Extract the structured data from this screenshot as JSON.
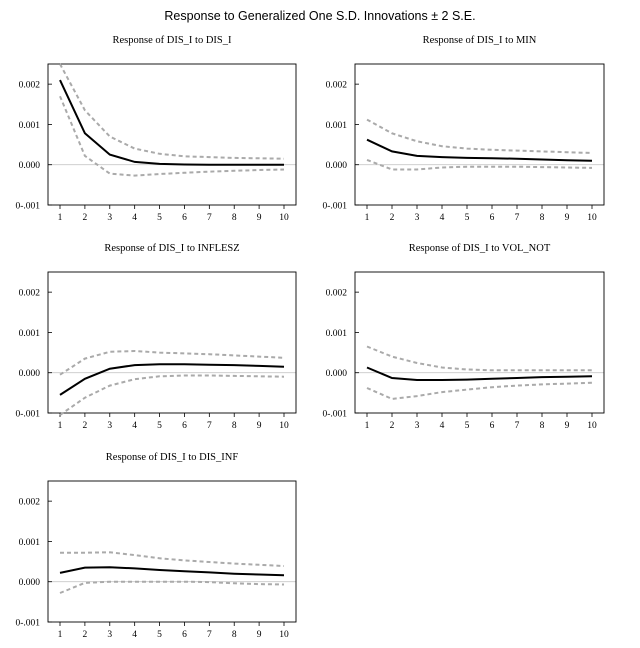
{
  "figure": {
    "title": "Response to Generalized One S.D. Innovations ± 2 S.E."
  },
  "style": {
    "response_color": "#000000",
    "band_color": "#aaaaaa",
    "zero_line_color": "#c8c8c8",
    "frame_color": "#000000"
  },
  "chart_data": [
    {
      "type": "line",
      "title": "Response of DIS_I to DIS_I",
      "x": [
        1,
        2,
        3,
        4,
        5,
        6,
        7,
        8,
        9,
        10
      ],
      "ylim": [
        -0.001,
        0.0025
      ],
      "ytick_values": [
        -0.001,
        0.0,
        0.001,
        0.002
      ],
      "ytick_labels": [
        "0-.001",
        "0.000",
        "0.001",
        "0.002"
      ],
      "xtick_labels": [
        "1",
        "2",
        "3",
        "4",
        "5",
        "6",
        "7",
        "8",
        "9",
        "10"
      ],
      "grid": false,
      "series": [
        {
          "role": "response",
          "values": [
            0.0021,
            0.00078,
            0.00025,
            7e-05,
            2e-05,
            5e-06,
            0.0,
            0.0,
            0.0,
            0.0
          ]
        },
        {
          "role": "upper",
          "values": [
            0.0025,
            0.00135,
            0.0007,
            0.0004,
            0.00027,
            0.00021,
            0.00019,
            0.00017,
            0.00016,
            0.00015
          ]
        },
        {
          "role": "lower",
          "values": [
            0.0017,
            0.00022,
            -0.00022,
            -0.00027,
            -0.00023,
            -0.0002,
            -0.00017,
            -0.00015,
            -0.00013,
            -0.00012
          ]
        }
      ]
    },
    {
      "type": "line",
      "title": "Response of DIS_I to MIN",
      "x": [
        1,
        2,
        3,
        4,
        5,
        6,
        7,
        8,
        9,
        10
      ],
      "ylim": [
        -0.001,
        0.0025
      ],
      "ytick_values": [
        -0.001,
        0.0,
        0.001,
        0.002
      ],
      "ytick_labels": [
        "0-.001",
        "0.000",
        "0.001",
        "0.002"
      ],
      "xtick_labels": [
        "1",
        "2",
        "3",
        "4",
        "5",
        "6",
        "7",
        "8",
        "9",
        "10"
      ],
      "grid": false,
      "series": [
        {
          "role": "response",
          "values": [
            0.00062,
            0.00033,
            0.00022,
            0.00019,
            0.00017,
            0.00016,
            0.00015,
            0.00013,
            0.00011,
            0.0001
          ]
        },
        {
          "role": "upper",
          "values": [
            0.00112,
            0.00078,
            0.00058,
            0.00046,
            0.0004,
            0.00037,
            0.00035,
            0.00033,
            0.00031,
            0.00029
          ]
        },
        {
          "role": "lower",
          "values": [
            0.00012,
            -0.00012,
            -0.00012,
            -7e-05,
            -5e-05,
            -5e-05,
            -5e-05,
            -6e-05,
            -7e-05,
            -8e-05
          ]
        }
      ]
    },
    {
      "type": "line",
      "title": "Response of DIS_I to INFLESZ",
      "x": [
        1,
        2,
        3,
        4,
        5,
        6,
        7,
        8,
        9,
        10
      ],
      "ylim": [
        -0.001,
        0.0025
      ],
      "ytick_values": [
        -0.001,
        0.0,
        0.001,
        0.002
      ],
      "ytick_labels": [
        "0-.001",
        "0.000",
        "0.001",
        "0.002"
      ],
      "xtick_labels": [
        "1",
        "2",
        "3",
        "4",
        "5",
        "6",
        "7",
        "8",
        "9",
        "10"
      ],
      "grid": false,
      "series": [
        {
          "role": "response",
          "values": [
            -0.00055,
            -0.00015,
            0.0001,
            0.00019,
            0.00021,
            0.00021,
            0.0002,
            0.00019,
            0.00017,
            0.00015
          ]
        },
        {
          "role": "upper",
          "values": [
            -5e-05,
            0.00035,
            0.00052,
            0.00054,
            0.0005,
            0.00048,
            0.00046,
            0.00043,
            0.0004,
            0.00037
          ]
        },
        {
          "role": "lower",
          "values": [
            -0.00105,
            -0.00062,
            -0.00032,
            -0.00016,
            -9e-05,
            -7e-05,
            -7e-05,
            -8e-05,
            -9e-05,
            -0.0001
          ]
        }
      ]
    },
    {
      "type": "line",
      "title": "Response of DIS_I to VOL_NOT",
      "x": [
        1,
        2,
        3,
        4,
        5,
        6,
        7,
        8,
        9,
        10
      ],
      "ylim": [
        -0.001,
        0.0025
      ],
      "ytick_values": [
        -0.001,
        0.0,
        0.001,
        0.002
      ],
      "ytick_labels": [
        "0-.001",
        "0.000",
        "0.001",
        "0.002"
      ],
      "xtick_labels": [
        "1",
        "2",
        "3",
        "4",
        "5",
        "6",
        "7",
        "8",
        "9",
        "10"
      ],
      "grid": false,
      "series": [
        {
          "role": "response",
          "values": [
            0.00013,
            -0.00013,
            -0.00018,
            -0.00018,
            -0.00017,
            -0.00015,
            -0.00013,
            -0.00011,
            -0.0001,
            -9e-05
          ]
        },
        {
          "role": "upper",
          "values": [
            0.00065,
            0.0004,
            0.00024,
            0.00013,
            8e-05,
            6e-05,
            6e-05,
            6e-05,
            6e-05,
            6e-05
          ]
        },
        {
          "role": "lower",
          "values": [
            -0.00038,
            -0.00065,
            -0.00058,
            -0.00048,
            -0.00042,
            -0.00036,
            -0.00032,
            -0.00029,
            -0.00027,
            -0.00025
          ]
        }
      ]
    },
    {
      "type": "line",
      "title": "Response of DIS_I to DIS_INF",
      "x": [
        1,
        2,
        3,
        4,
        5,
        6,
        7,
        8,
        9,
        10
      ],
      "ylim": [
        -0.001,
        0.0025
      ],
      "ytick_values": [
        -0.001,
        0.0,
        0.001,
        0.002
      ],
      "ytick_labels": [
        "0-.001",
        "0.000",
        "0.001",
        "0.002"
      ],
      "xtick_labels": [
        "1",
        "2",
        "3",
        "4",
        "5",
        "6",
        "7",
        "8",
        "9",
        "10"
      ],
      "grid": false,
      "series": [
        {
          "role": "response",
          "values": [
            0.00022,
            0.00035,
            0.00036,
            0.00033,
            0.00029,
            0.00026,
            0.00023,
            0.0002,
            0.00018,
            0.00016
          ]
        },
        {
          "role": "upper",
          "values": [
            0.00072,
            0.00072,
            0.00073,
            0.00066,
            0.00058,
            0.00053,
            0.00049,
            0.00045,
            0.00042,
            0.00039
          ]
        },
        {
          "role": "lower",
          "values": [
            -0.00028,
            -3e-05,
            0.0,
            0.0,
            0.0,
            0.0,
            -1e-05,
            -4e-05,
            -6e-05,
            -7e-05
          ]
        }
      ]
    }
  ]
}
